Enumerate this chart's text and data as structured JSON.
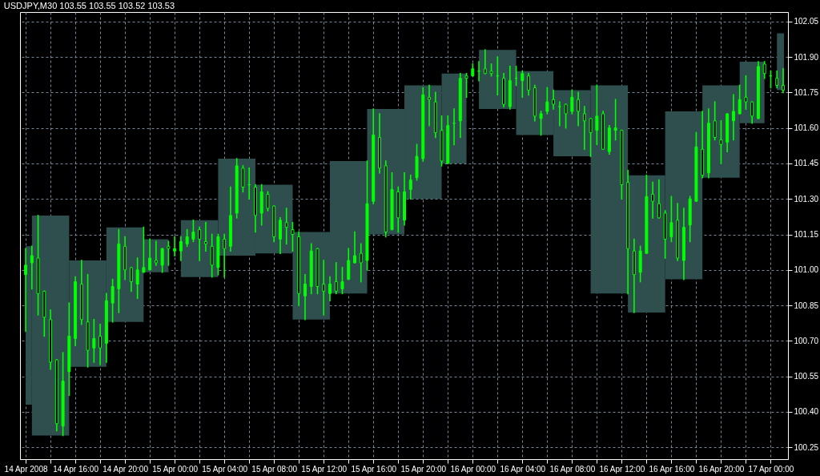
{
  "chart_data": {
    "type": "candlestick",
    "title": "USDJPY,M30  103.55 103.55 103.52 103.53",
    "xlim": [
      "2008-04-14T11:52",
      "2008-04-17T01:04"
    ],
    "xticks": [
      {
        "value": "2008-04-14T12:00",
        "label": "14 Apr 2008"
      },
      {
        "value": "2008-04-14T14:00",
        "label": null
      },
      {
        "value": "2008-04-14T16:00",
        "label": "14 Apr 16:00"
      },
      {
        "value": "2008-04-14T18:00",
        "label": null
      },
      {
        "value": "2008-04-14T20:00",
        "label": "14 Apr 20:00"
      },
      {
        "value": "2008-04-14T22:00",
        "label": null
      },
      {
        "value": "2008-04-15T00:00",
        "label": "15 Apr 00:00"
      },
      {
        "value": "2008-04-15T02:00",
        "label": null
      },
      {
        "value": "2008-04-15T04:00",
        "label": "15 Apr 04:00"
      },
      {
        "value": "2008-04-15T06:00",
        "label": null
      },
      {
        "value": "2008-04-15T08:00",
        "label": "15 Apr 08:00"
      },
      {
        "value": "2008-04-15T10:00",
        "label": null
      },
      {
        "value": "2008-04-15T12:00",
        "label": "15 Apr 12:00"
      },
      {
        "value": "2008-04-15T14:00",
        "label": null
      },
      {
        "value": "2008-04-15T16:00",
        "label": "15 Apr 16:00"
      },
      {
        "value": "2008-04-15T18:00",
        "label": null
      },
      {
        "value": "2008-04-15T20:00",
        "label": "15 Apr 20:00"
      },
      {
        "value": "2008-04-15T22:00",
        "label": null
      },
      {
        "value": "2008-04-16T00:00",
        "label": "16 Apr 00:00"
      },
      {
        "value": "2008-04-16T02:00",
        "label": null
      },
      {
        "value": "2008-04-16T04:00",
        "label": "16 Apr 04:00"
      },
      {
        "value": "2008-04-16T06:00",
        "label": null
      },
      {
        "value": "2008-04-16T08:00",
        "label": "16 Apr 08:00"
      },
      {
        "value": "2008-04-16T10:00",
        "label": null
      },
      {
        "value": "2008-04-16T12:00",
        "label": "16 Apr 12:00"
      },
      {
        "value": "2008-04-16T14:00",
        "label": null
      },
      {
        "value": "2008-04-16T16:00",
        "label": "16 Apr 16:00"
      },
      {
        "value": "2008-04-16T18:00",
        "label": null
      },
      {
        "value": "2008-04-16T20:00",
        "label": "16 Apr 20:00"
      },
      {
        "value": "2008-04-16T22:00",
        "label": null
      },
      {
        "value": "2008-04-17T00:00",
        "label": "17 Apr 00:00"
      }
    ],
    "ylim": [
      100.2,
      102.09
    ],
    "yticks": [
      {
        "value": 100.25,
        "label": "100.25"
      },
      {
        "value": 100.4,
        "label": "100.40"
      },
      {
        "value": 100.55,
        "label": "100.55"
      },
      {
        "value": 100.7,
        "label": "100.70"
      },
      {
        "value": 100.85,
        "label": "100.85"
      },
      {
        "value": 101.0,
        "label": "101.00"
      },
      {
        "value": 101.15,
        "label": "101.15"
      },
      {
        "value": 101.3,
        "label": "101.30"
      },
      {
        "value": 101.45,
        "label": "101.45"
      },
      {
        "value": 101.6,
        "label": "101.60"
      },
      {
        "value": 101.75,
        "label": "101.75"
      },
      {
        "value": 101.9,
        "label": "101.90"
      },
      {
        "value": 102.05,
        "label": "102.05"
      }
    ],
    "grid": true,
    "series": [
      {
        "type": "bar",
        "color": "#2f4f4f",
        "x": [
          "2008-04-14T12:15",
          "2008-04-14T14:00",
          "2008-04-14T17:00",
          "2008-04-14T20:00",
          "2008-04-14T22:30",
          "2008-04-15T00:00",
          "2008-04-15T02:00",
          "2008-04-15T05:00",
          "2008-04-15T08:00",
          "2008-04-15T11:00",
          "2008-04-15T14:00",
          "2008-04-15T17:00",
          "2008-04-15T20:00",
          "2008-04-15T22:30",
          "2008-04-16T00:00",
          "2008-04-16T02:00",
          "2008-04-16T05:00",
          "2008-04-16T08:00",
          "2008-04-16T11:00",
          "2008-04-16T14:00",
          "2008-04-16T17:00",
          "2008-04-16T20:00",
          "2008-04-16T22:30",
          "2008-04-17T00:00",
          "2008-04-17T00:47"
        ],
        "base": [
          100.43,
          100.3,
          100.59,
          100.78,
          100.99,
          null,
          100.97,
          101.06,
          101.07,
          100.79,
          100.9,
          101.15,
          101.3,
          101.45,
          null,
          101.68,
          101.57,
          101.48,
          100.9,
          100.82,
          100.96,
          101.39,
          101.62,
          null,
          101.76
        ],
        "values": [
          0.67,
          0.93,
          0.45,
          0.4,
          0.14,
          null,
          0.24,
          0.41,
          0.29,
          0.37,
          0.56,
          0.53,
          0.48,
          0.38,
          null,
          0.25,
          0.27,
          0.28,
          0.88,
          0.58,
          0.71,
          0.39,
          0.26,
          null,
          0.24
        ]
      },
      {
        "type": "candlestick",
        "color": "#00ff00",
        "x": [
          "2008-04-14T12:00",
          "2008-04-14T12:30",
          "2008-04-14T13:00",
          "2008-04-14T13:30",
          "2008-04-14T14:00",
          "2008-04-14T14:30",
          "2008-04-14T15:00",
          "2008-04-14T15:30",
          "2008-04-14T16:00",
          "2008-04-14T16:30",
          "2008-04-14T17:00",
          "2008-04-14T17:30",
          "2008-04-14T18:00",
          "2008-04-14T18:30",
          "2008-04-14T19:00",
          "2008-04-14T19:30",
          "2008-04-14T20:00",
          "2008-04-14T20:30",
          "2008-04-14T21:00",
          "2008-04-14T21:30",
          "2008-04-14T22:00",
          "2008-04-14T22:30",
          "2008-04-14T23:00",
          "2008-04-14T23:30",
          "2008-04-15T00:00",
          "2008-04-15T00:30",
          "2008-04-15T01:00",
          "2008-04-15T01:30",
          "2008-04-15T02:00",
          "2008-04-15T02:30",
          "2008-04-15T03:00",
          "2008-04-15T03:30",
          "2008-04-15T04:00",
          "2008-04-15T04:30",
          "2008-04-15T05:00",
          "2008-04-15T05:30",
          "2008-04-15T06:00",
          "2008-04-15T06:30",
          "2008-04-15T07:00",
          "2008-04-15T07:30",
          "2008-04-15T08:00",
          "2008-04-15T08:30",
          "2008-04-15T09:00",
          "2008-04-15T09:30",
          "2008-04-15T10:00",
          "2008-04-15T10:30",
          "2008-04-15T11:00",
          "2008-04-15T11:30",
          "2008-04-15T12:00",
          "2008-04-15T12:30",
          "2008-04-15T13:00",
          "2008-04-15T13:30",
          "2008-04-15T14:00",
          "2008-04-15T14:30",
          "2008-04-15T15:00",
          "2008-04-15T15:30",
          "2008-04-15T16:00",
          "2008-04-15T16:30",
          "2008-04-15T17:00",
          "2008-04-15T17:30",
          "2008-04-15T18:00",
          "2008-04-15T18:30",
          "2008-04-15T19:00",
          "2008-04-15T19:30",
          "2008-04-15T20:00",
          "2008-04-15T20:30",
          "2008-04-15T21:00",
          "2008-04-15T21:30",
          "2008-04-15T22:00",
          "2008-04-15T22:30",
          "2008-04-15T23:00",
          "2008-04-15T23:30",
          "2008-04-16T00:00",
          "2008-04-16T00:30",
          "2008-04-16T01:00",
          "2008-04-16T01:30",
          "2008-04-16T02:00",
          "2008-04-16T02:30",
          "2008-04-16T03:00",
          "2008-04-16T03:30",
          "2008-04-16T04:00",
          "2008-04-16T04:30",
          "2008-04-16T05:00",
          "2008-04-16T05:30",
          "2008-04-16T06:00",
          "2008-04-16T06:30",
          "2008-04-16T07:00",
          "2008-04-16T07:30",
          "2008-04-16T08:00",
          "2008-04-16T08:30",
          "2008-04-16T09:00",
          "2008-04-16T09:30",
          "2008-04-16T10:00",
          "2008-04-16T10:30",
          "2008-04-16T11:00",
          "2008-04-16T11:30",
          "2008-04-16T12:00",
          "2008-04-16T12:30",
          "2008-04-16T13:00",
          "2008-04-16T13:30",
          "2008-04-16T14:00",
          "2008-04-16T14:30",
          "2008-04-16T15:00",
          "2008-04-16T15:30",
          "2008-04-16T16:00",
          "2008-04-16T16:30",
          "2008-04-16T17:00",
          "2008-04-16T17:30",
          "2008-04-16T18:00",
          "2008-04-16T18:30",
          "2008-04-16T19:00",
          "2008-04-16T19:30",
          "2008-04-16T20:00",
          "2008-04-16T20:30",
          "2008-04-16T21:00",
          "2008-04-16T21:30",
          "2008-04-16T22:00",
          "2008-04-16T22:30",
          "2008-04-16T23:00",
          "2008-04-16T23:30",
          "2008-04-17T00:00",
          "2008-04-17T00:30",
          "2008-04-17T01:00"
        ],
        "ohlc": [
          [
            100.98,
            101.09,
            100.74,
            101.02
          ],
          [
            101.03,
            101.1,
            100.92,
            101.06
          ],
          [
            101.05,
            101.23,
            100.81,
            100.9
          ],
          [
            100.91,
            100.91,
            100.72,
            100.8
          ],
          [
            100.79,
            100.83,
            100.58,
            100.61
          ],
          [
            100.62,
            100.62,
            100.32,
            100.35
          ],
          [
            100.34,
            100.65,
            100.3,
            100.53
          ],
          [
            100.57,
            100.86,
            100.47,
            100.72
          ],
          [
            100.71,
            100.97,
            100.68,
            100.95
          ],
          [
            100.94,
            101.04,
            100.77,
            100.79
          ],
          [
            100.78,
            100.98,
            100.59,
            100.66
          ],
          [
            100.67,
            100.79,
            100.61,
            100.71
          ],
          [
            100.72,
            100.77,
            100.6,
            100.67
          ],
          [
            100.69,
            100.9,
            100.61,
            100.87
          ],
          [
            100.86,
            100.96,
            100.78,
            100.93
          ],
          [
            100.92,
            101.17,
            100.82,
            101.11
          ],
          [
            101.1,
            101.14,
            100.96,
            101.0
          ],
          [
            101.01,
            101.01,
            100.91,
            100.95
          ],
          [
            100.94,
            101.05,
            100.88,
            101.0
          ],
          [
            100.99,
            101.18,
            100.99,
            101.01
          ],
          [
            101.0,
            101.13,
            101.0,
            101.05
          ],
          [
            101.04,
            101.12,
            101.02,
            101.03
          ],
          [
            101.02,
            101.09,
            100.99,
            101.09
          ],
          [
            101.1,
            101.12,
            101.02,
            101.09
          ],
          [
            101.08,
            101.14,
            101.06,
            101.09
          ],
          [
            101.08,
            101.14,
            101.04,
            101.12
          ],
          [
            101.11,
            101.17,
            101.1,
            101.14
          ],
          [
            101.13,
            101.21,
            101.12,
            101.16
          ],
          [
            101.17,
            101.18,
            101.04,
            101.13
          ],
          [
            101.12,
            101.2,
            101.08,
            101.11
          ],
          [
            101.1,
            101.15,
            100.97,
            101.02
          ],
          [
            101.01,
            101.15,
            100.98,
            101.14
          ],
          [
            101.13,
            101.15,
            100.97,
            101.09
          ],
          [
            101.1,
            101.35,
            101.08,
            101.23
          ],
          [
            101.24,
            101.47,
            101.22,
            101.44
          ],
          [
            101.43,
            101.44,
            101.33,
            101.35
          ],
          [
            101.36,
            101.43,
            101.3,
            101.36
          ],
          [
            101.35,
            101.36,
            101.16,
            101.23
          ],
          [
            101.24,
            101.36,
            101.19,
            101.33
          ],
          [
            101.32,
            101.33,
            101.25,
            101.26
          ],
          [
            101.27,
            101.27,
            101.12,
            101.14
          ],
          [
            101.13,
            101.22,
            101.07,
            101.21
          ],
          [
            101.2,
            101.26,
            101.11,
            101.18
          ],
          [
            101.17,
            101.2,
            101.08,
            101.15
          ],
          [
            101.14,
            101.16,
            100.85,
            100.9
          ],
          [
            100.89,
            100.98,
            100.79,
            100.94
          ],
          [
            100.93,
            101.11,
            100.9,
            101.08
          ],
          [
            101.09,
            101.09,
            100.9,
            100.93
          ],
          [
            100.94,
            101.04,
            100.81,
            100.91
          ],
          [
            100.9,
            100.97,
            100.87,
            100.94
          ],
          [
            100.95,
            101.03,
            100.9,
            100.91
          ],
          [
            100.92,
            101.01,
            100.9,
            100.95
          ],
          [
            100.96,
            101.09,
            100.96,
            101.04
          ],
          [
            101.03,
            101.16,
            101.03,
            101.06
          ],
          [
            101.07,
            101.11,
            100.95,
            101.03
          ],
          [
            101.04,
            101.46,
            101.0,
            101.28
          ],
          [
            101.29,
            101.68,
            101.28,
            101.57
          ],
          [
            101.56,
            101.66,
            101.41,
            101.43
          ],
          [
            101.44,
            101.46,
            101.14,
            101.16
          ],
          [
            101.17,
            101.41,
            101.17,
            101.34
          ],
          [
            101.33,
            101.35,
            101.16,
            101.22
          ],
          [
            101.21,
            101.41,
            101.19,
            101.33
          ],
          [
            101.34,
            101.4,
            101.3,
            101.38
          ],
          [
            101.39,
            101.53,
            101.38,
            101.48
          ],
          [
            101.47,
            101.77,
            101.46,
            101.74
          ],
          [
            101.73,
            101.78,
            101.61,
            101.72
          ],
          [
            101.71,
            101.75,
            101.56,
            101.58
          ],
          [
            101.59,
            101.65,
            101.44,
            101.46
          ],
          [
            101.45,
            101.65,
            101.45,
            101.61
          ],
          [
            101.62,
            101.68,
            101.53,
            101.62
          ],
          [
            101.63,
            101.83,
            101.56,
            101.81
          ],
          [
            101.82,
            101.83,
            101.73,
            101.81
          ],
          [
            101.82,
            101.87,
            101.82,
            101.85
          ],
          [
            101.84,
            101.88,
            101.8,
            101.84
          ],
          [
            101.85,
            101.93,
            101.83,
            101.83
          ],
          [
            101.84,
            101.87,
            101.82,
            101.83
          ],
          [
            101.82,
            101.9,
            101.74,
            101.82
          ],
          [
            101.81,
            101.83,
            101.69,
            101.7
          ],
          [
            101.69,
            101.86,
            101.68,
            101.8
          ],
          [
            101.81,
            101.86,
            101.78,
            101.81
          ],
          [
            101.8,
            101.84,
            101.73,
            101.83
          ],
          [
            101.82,
            101.83,
            101.74,
            101.76
          ],
          [
            101.77,
            101.78,
            101.63,
            101.65
          ],
          [
            101.64,
            101.67,
            101.57,
            101.66
          ],
          [
            101.67,
            101.77,
            101.66,
            101.71
          ],
          [
            101.72,
            101.76,
            101.68,
            101.7
          ],
          [
            101.69,
            101.71,
            101.61,
            101.69
          ],
          [
            101.7,
            101.7,
            101.6,
            101.66
          ],
          [
            101.67,
            101.76,
            101.66,
            101.73
          ],
          [
            101.72,
            101.75,
            101.61,
            101.67
          ],
          [
            101.66,
            101.69,
            101.51,
            101.63
          ],
          [
            101.64,
            101.64,
            101.48,
            101.58
          ],
          [
            101.59,
            101.78,
            101.53,
            101.65
          ],
          [
            101.66,
            101.67,
            101.51,
            101.51
          ],
          [
            101.5,
            101.61,
            101.49,
            101.6
          ],
          [
            101.59,
            101.72,
            101.55,
            101.6
          ],
          [
            101.59,
            101.59,
            101.3,
            101.36
          ],
          [
            101.37,
            101.42,
            100.9,
            101.09
          ],
          [
            101.08,
            101.13,
            100.82,
            100.98
          ],
          [
            100.99,
            101.1,
            100.95,
            101.08
          ],
          [
            101.07,
            101.4,
            101.07,
            101.31
          ],
          [
            101.32,
            101.37,
            101.22,
            101.29
          ],
          [
            101.28,
            101.38,
            101.22,
            101.22
          ],
          [
            101.24,
            101.25,
            101.05,
            101.13
          ],
          [
            101.14,
            101.31,
            101.12,
            101.2
          ],
          [
            101.21,
            101.28,
            101.04,
            101.05
          ],
          [
            101.04,
            101.26,
            100.96,
            101.18
          ],
          [
            101.19,
            101.31,
            101.12,
            101.3
          ],
          [
            101.29,
            101.58,
            101.29,
            101.52
          ],
          [
            101.51,
            101.67,
            101.39,
            101.4
          ],
          [
            101.41,
            101.68,
            101.39,
            101.62
          ],
          [
            101.63,
            101.71,
            101.55,
            101.56
          ],
          [
            101.55,
            101.63,
            101.45,
            101.53
          ],
          [
            101.54,
            101.66,
            101.5,
            101.66
          ],
          [
            101.63,
            101.74,
            101.55,
            101.67
          ],
          [
            101.66,
            101.78,
            101.66,
            101.72
          ],
          [
            101.73,
            101.82,
            101.68,
            101.71
          ],
          [
            101.71,
            101.71,
            101.62,
            101.65
          ],
          [
            101.64,
            101.88,
            101.64,
            101.86
          ],
          [
            101.87,
            101.88,
            101.81,
            101.83
          ],
          [
            101.82,
            101.84,
            101.77,
            101.82
          ],
          [
            101.81,
            101.84,
            101.77,
            101.78
          ],
          [
            101.78,
            101.85,
            101.75,
            101.76
          ]
        ]
      }
    ]
  }
}
